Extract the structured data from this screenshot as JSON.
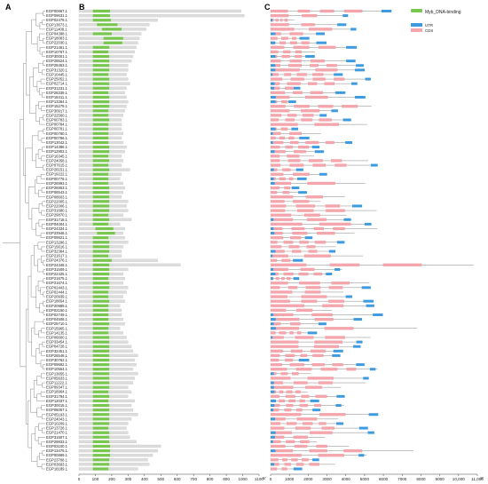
{
  "panels": {
    "a": "A",
    "b": "B",
    "c": "C"
  },
  "genes": [
    "EGP00867.1",
    "EGP09631.1",
    "EGP02479.1",
    "EGP13673.1",
    "EGP11408.1",
    "EGP04398.1",
    "EGP18083.1",
    "EGP22030.1",
    "EGP21461.1",
    "EGP10767.1",
    "EGP30001.1",
    "EGP28524.1",
    "EGP28453.1",
    "EGP31320.1",
    "EGP10445.1",
    "EGP25052.1",
    "EGP02714.1",
    "EGP31231.1",
    "EGP28339.1",
    "EGP18411.1",
    "EGP13364.1",
    "EGP15279.1",
    "EGP30917.1",
    "EGP22560.1",
    "EGP00783.1",
    "EGP00784.1",
    "EGP00781.1",
    "EGP00780.1",
    "EGP00786.1",
    "EGP13042.1",
    "EGP14386.1",
    "EGP12902.1",
    "EGP16345.1",
    "EGP24058.1",
    "EGP07615.1",
    "EGP28151.1",
    "EGP19222.1",
    "EGP00776.1",
    "EGP26993.1",
    "EGP26953.1",
    "EGP06543.1",
    "EGP08603.1",
    "EGP22005.1",
    "EGP22006.1",
    "EGP31680.1",
    "EGP29870.1",
    "EGP31718.1",
    "EGP04004.1",
    "EGP24334.1",
    "EGP23946.1",
    "EGP09921.1",
    "EGP13296.1",
    "EGP15616.1",
    "EGP32384.1",
    "EGP21617.1",
    "EGP24376.1",
    "EGP24348.1",
    "EGP31509.1",
    "EGP22425.1",
    "EGP21675.1",
    "EGP21674.1",
    "EGP02443.1",
    "EGP02444.1",
    "EGP20939.1",
    "EGP18654.1",
    "EGP20989.1",
    "EGP02150.1",
    "EGP02749.1",
    "EGP04508.1",
    "EGP25710.1",
    "EGP15965.1",
    "EGP14135.1",
    "EGP06600.1",
    "EGP33454.1",
    "EGP04728.1",
    "EGP32451.1",
    "EGP26548.1",
    "EGP30762.1",
    "EGP09692.1",
    "EGP10554.1",
    "EGP13655.1",
    "EGP05633.1",
    "EGP11222.1",
    "EGP09347.1",
    "EGP18964.1",
    "EGP31794.1",
    "EGP12037.1",
    "EGP30015.1",
    "EGP06057.1",
    "EGP05193.1",
    "EGP24043.1",
    "EGP10209.1",
    "EGP13726.1",
    "EGP21470.1",
    "EGP31607.1",
    "EGP29833.1",
    "EGP03100.1",
    "EGP13475.1",
    "EGP00869.1",
    "EGP23708.1",
    "EGP03693.1",
    "EGP18189.1"
  ],
  "panel_b": {
    "axis_ticks": [
      0,
      100,
      200,
      300,
      400,
      500,
      600,
      700,
      800,
      900,
      1000,
      1100
    ],
    "axis_max": 1100,
    "protein_lengths": [
      990,
      1010,
      480,
      430,
      410,
      380,
      370,
      360,
      350,
      340,
      330,
      320,
      300,
      300,
      290,
      300,
      310,
      290,
      280,
      290,
      300,
      290,
      280,
      270,
      260,
      260,
      260,
      270,
      260,
      270,
      290,
      280,
      260,
      270,
      260,
      310,
      260,
      250,
      270,
      280,
      270,
      260,
      300,
      290,
      300,
      270,
      320,
      250,
      280,
      270,
      280,
      300,
      270,
      260,
      260,
      480,
      620,
      300,
      270,
      280,
      270,
      300,
      290,
      270,
      280,
      250,
      260,
      260,
      270,
      280,
      250,
      270,
      290,
      300,
      320,
      330,
      360,
      340,
      350,
      330,
      360,
      340,
      330,
      300,
      320,
      300,
      340,
      320,
      330,
      360,
      320,
      300,
      290,
      300,
      310,
      350,
      500,
      480,
      450,
      420,
      430,
      360
    ],
    "domain_start": [
      85,
      85,
      85,
      110,
      140,
      85,
      150,
      150,
      85,
      85,
      85,
      85,
      85,
      85,
      85,
      85,
      85,
      85,
      85,
      85,
      85,
      85,
      85,
      85,
      85,
      85,
      85,
      85,
      85,
      85,
      85,
      85,
      85,
      85,
      85,
      85,
      85,
      85,
      85,
      85,
      85,
      85,
      85,
      85,
      85,
      85,
      85,
      85,
      100,
      110,
      85,
      85,
      85,
      85,
      85,
      85,
      85,
      85,
      85,
      85,
      85,
      85,
      85,
      85,
      85,
      85,
      85,
      85,
      85,
      85,
      85,
      85,
      85,
      85,
      85,
      85,
      85,
      85,
      85,
      85,
      85,
      85,
      85,
      85,
      85,
      85,
      85,
      85,
      85,
      85,
      85,
      85,
      85,
      85,
      85,
      85,
      85,
      85,
      85,
      85,
      85,
      85
    ],
    "domain_end": [
      190,
      190,
      195,
      235,
      260,
      200,
      270,
      265,
      185,
      180,
      185,
      185,
      185,
      185,
      180,
      185,
      185,
      185,
      180,
      185,
      185,
      185,
      180,
      180,
      185,
      180,
      180,
      180,
      180,
      180,
      185,
      185,
      180,
      185,
      180,
      185,
      180,
      180,
      180,
      185,
      185,
      185,
      185,
      185,
      185,
      180,
      185,
      180,
      210,
      220,
      180,
      185,
      185,
      185,
      180,
      200,
      185,
      185,
      185,
      180,
      185,
      185,
      180,
      180,
      185,
      180,
      180,
      180,
      180,
      185,
      180,
      180,
      185,
      185,
      185,
      185,
      185,
      185,
      185,
      185,
      185,
      185,
      185,
      185,
      180,
      185,
      180,
      185,
      185,
      185,
      185,
      185,
      180,
      185,
      185,
      185,
      190,
      190,
      190,
      185,
      185,
      180
    ]
  },
  "panel_c": {
    "axis_ticks": [
      "0",
      "1000",
      "2000",
      "3000",
      "4000",
      "5000",
      "6000",
      "7000",
      "8000",
      "9000",
      "10,000",
      "11,000"
    ],
    "axis_max": 11000,
    "left_end_label": "5'",
    "right_end_label": "3'"
  },
  "legend": {
    "domain_label": "Myb_DNA-binding",
    "utr_label": "UTR",
    "cds_label": "CDS",
    "colors": {
      "domain": "#78c850",
      "utr": "#3f9be0",
      "cds": "#f5a6ad",
      "protein": "#dcdcdc",
      "tree": "#888888"
    }
  }
}
